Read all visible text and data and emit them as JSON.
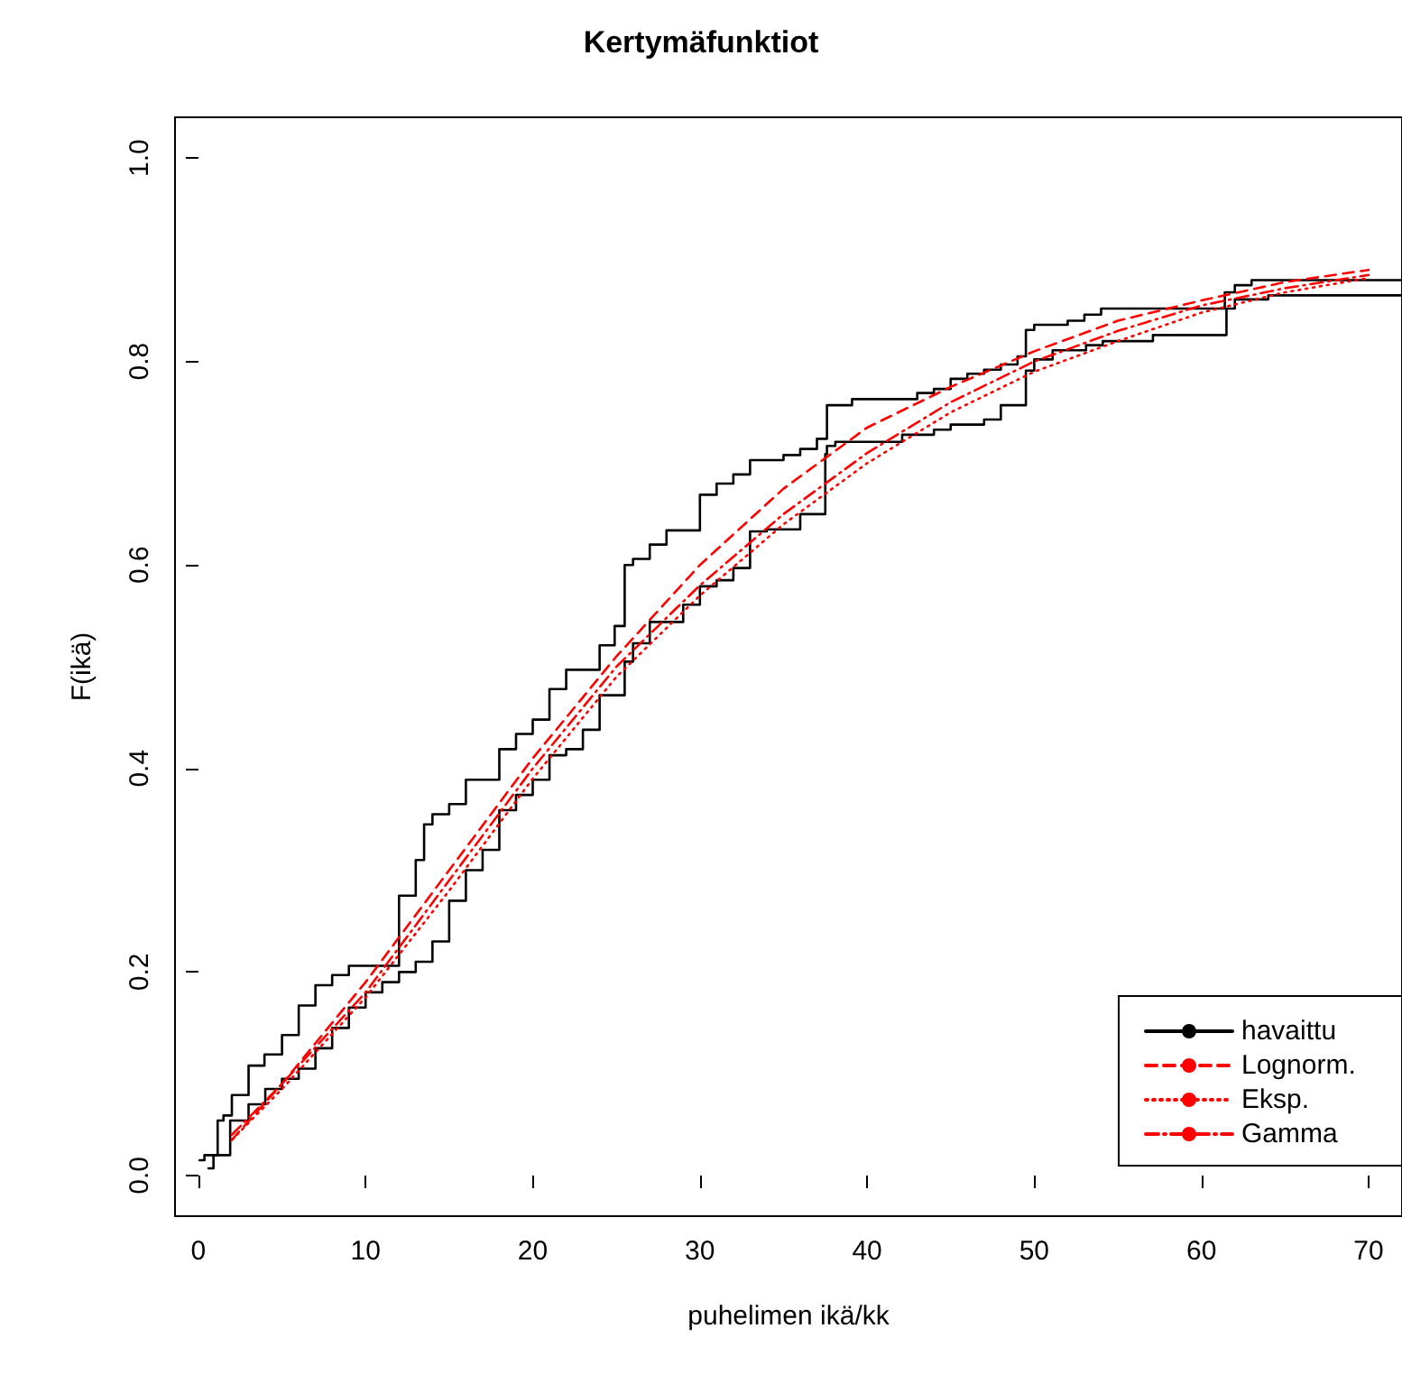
{
  "chart_data": {
    "type": "line",
    "title": "Kertymäfunktiot",
    "xlabel": "puhelimen ikä/kk",
    "ylabel": "F(ikä)",
    "xlim": [
      -1.4,
      72
    ],
    "ylim": [
      -0.04,
      1.04
    ],
    "xticks": [
      0,
      10,
      20,
      30,
      40,
      50,
      60,
      70
    ],
    "yticks": [
      {
        "value": 0,
        "label": "0.0"
      },
      {
        "value": 0.2,
        "label": "0.2"
      },
      {
        "value": 0.4,
        "label": "0.4"
      },
      {
        "value": 0.6,
        "label": "0.6"
      },
      {
        "value": 0.8,
        "label": "0.8"
      },
      {
        "value": 1,
        "label": "1.0"
      }
    ],
    "grid": false,
    "legend": "bottom right",
    "series": [
      {
        "name": "havaittu",
        "type": "step",
        "color": "#000000",
        "line_style": "solid",
        "x": [
          0.07,
          0.36,
          1.15,
          1.5,
          2.0,
          3.0,
          3.95,
          5.0,
          6.0,
          7.0,
          8.0,
          9.0,
          12.0,
          13.0,
          13.5,
          14.0,
          15.0,
          16.0,
          18.0,
          19.0,
          20.0,
          21.0,
          22.0,
          24.0,
          24.9,
          25.5,
          26.0,
          27.0,
          28.0,
          30.0,
          31.0,
          32.0,
          33.0,
          35.0,
          36.0,
          37.0,
          37.6,
          39.1,
          43.0,
          44.0,
          45.0,
          46.0,
          47.0,
          48.0,
          49.0,
          49.5,
          50.0,
          52.0,
          53.0,
          54.0,
          61.4,
          62.0,
          63.0,
          72.0
        ],
        "values": [
          0.015,
          0.02,
          0.054,
          0.059,
          0.079,
          0.108,
          0.119,
          0.138,
          0.167,
          0.187,
          0.197,
          0.206,
          0.275,
          0.31,
          0.345,
          0.355,
          0.365,
          0.389,
          0.419,
          0.434,
          0.448,
          0.478,
          0.497,
          0.521,
          0.54,
          0.6,
          0.606,
          0.62,
          0.634,
          0.669,
          0.68,
          0.689,
          0.703,
          0.708,
          0.714,
          0.724,
          0.757,
          0.763,
          0.769,
          0.773,
          0.783,
          0.788,
          0.792,
          0.797,
          0.805,
          0.831,
          0.836,
          0.84,
          0.846,
          0.852,
          0.868,
          0.875,
          0.88,
          0.88
        ]
      },
      {
        "type": "step",
        "color": "#000000",
        "line_style": "solid",
        "x": [
          0.6,
          0.9,
          1.9,
          3.0,
          4.0,
          5.0,
          6.0,
          7.0,
          8.0,
          9.0,
          10.0,
          11.0,
          12.0,
          13.0,
          14.0,
          15.0,
          16.0,
          17.0,
          18.0,
          19.0,
          20.0,
          21.0,
          22.0,
          23.0,
          24.0,
          25.5,
          26.0,
          27.0,
          29.0,
          30.0,
          31.0,
          32.0,
          33.0,
          34.0,
          36.0,
          37.5,
          37.6,
          38.1,
          42.1,
          44.0,
          45.0,
          47.0,
          48.0,
          49.5,
          50.0,
          51.1,
          53.1,
          54.1,
          57.1,
          61.5,
          62.0,
          64.0,
          72.0
        ],
        "values": [
          0.007,
          0.02,
          0.054,
          0.07,
          0.085,
          0.095,
          0.105,
          0.125,
          0.145,
          0.165,
          0.18,
          0.19,
          0.2,
          0.21,
          0.23,
          0.27,
          0.3,
          0.32,
          0.359,
          0.374,
          0.389,
          0.413,
          0.419,
          0.438,
          0.472,
          0.505,
          0.523,
          0.544,
          0.561,
          0.579,
          0.585,
          0.597,
          0.633,
          0.635,
          0.65,
          0.709,
          0.717,
          0.721,
          0.728,
          0.733,
          0.738,
          0.743,
          0.757,
          0.791,
          0.802,
          0.811,
          0.816,
          0.82,
          0.826,
          0.852,
          0.861,
          0.865,
          0.865
        ]
      },
      {
        "name": "Lognorm.",
        "color": "#ff0000",
        "line_style": "dashed",
        "x": [
          2,
          5,
          10,
          15,
          20,
          25,
          30,
          35,
          40,
          45,
          50,
          55,
          60,
          65,
          70
        ],
        "values": [
          0.035,
          0.09,
          0.19,
          0.3,
          0.41,
          0.51,
          0.6,
          0.675,
          0.735,
          0.775,
          0.81,
          0.84,
          0.86,
          0.878,
          0.89
        ]
      },
      {
        "name": "Eksp.",
        "color": "#ff0000",
        "line_style": "dotted",
        "x": [
          2,
          5,
          10,
          15,
          20,
          25,
          30,
          35,
          40,
          45,
          50,
          55,
          60,
          65,
          70
        ],
        "values": [
          0.035,
          0.085,
          0.175,
          0.28,
          0.39,
          0.49,
          0.57,
          0.64,
          0.7,
          0.75,
          0.79,
          0.82,
          0.848,
          0.868,
          0.882
        ]
      },
      {
        "name": "Gamma",
        "color": "#ff0000",
        "line_style": "dashdot",
        "x": [
          2,
          5,
          10,
          15,
          20,
          25,
          30,
          35,
          40,
          45,
          50,
          55,
          60,
          65,
          70
        ],
        "values": [
          0.04,
          0.09,
          0.18,
          0.29,
          0.4,
          0.5,
          0.58,
          0.65,
          0.71,
          0.76,
          0.8,
          0.83,
          0.855,
          0.872,
          0.885
        ]
      }
    ]
  }
}
